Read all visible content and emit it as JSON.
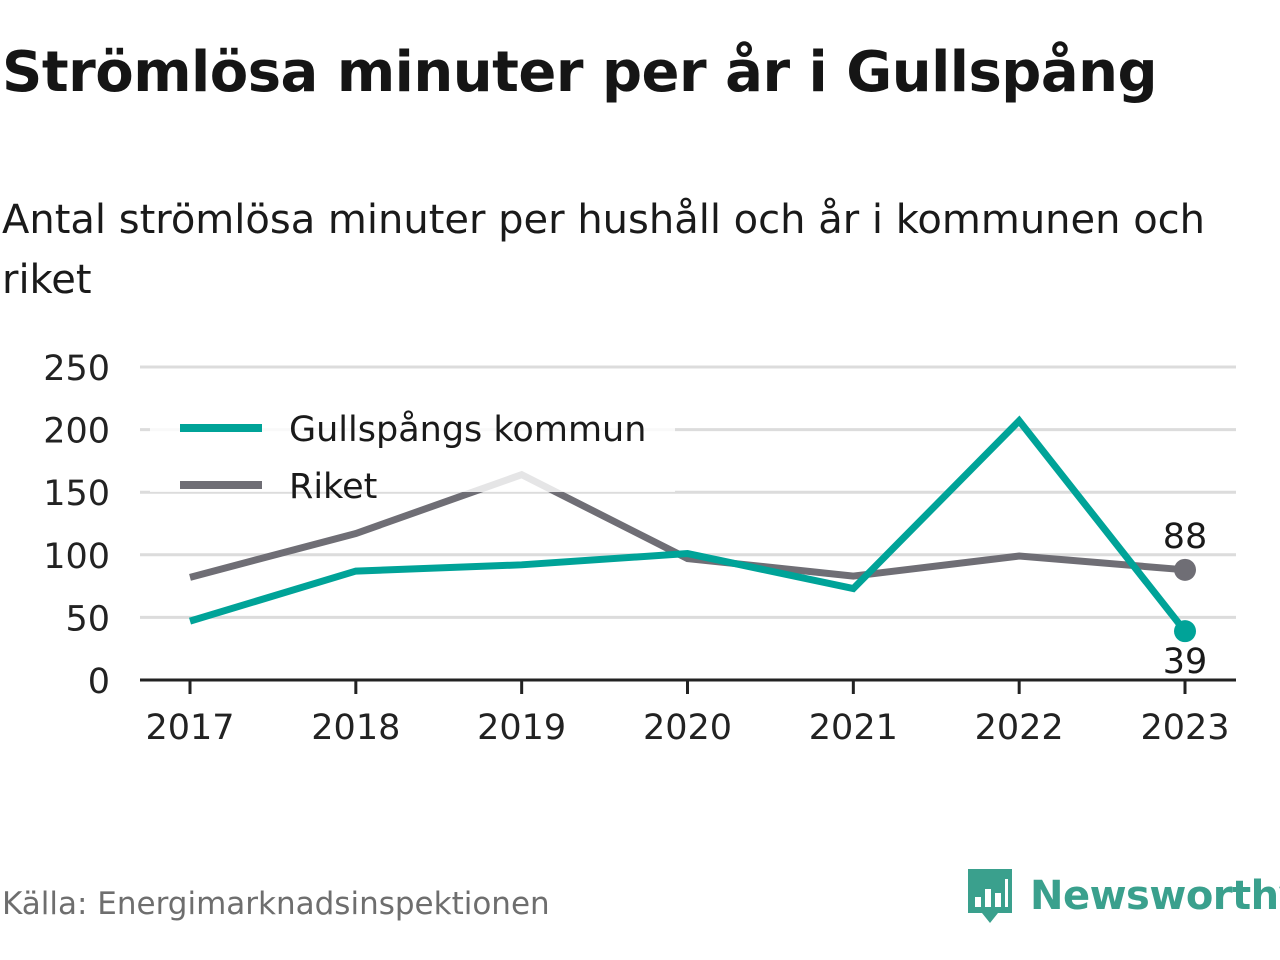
{
  "title": "Strömlösa minuter per år i Gullspång",
  "subtitle": "Antal strömlösa minuter per hushåll och år i kommunen och riket",
  "source": "Källa: Energimarknadsinspektionen",
  "brand": {
    "name": "Newsworthy",
    "icon": "newsworthy-logo-icon"
  },
  "colors": {
    "primary": "#00a398",
    "secondary": "#6f6e75",
    "grid": "#dcdcdc",
    "brand": "#3aa08d"
  },
  "chart_data": {
    "type": "line",
    "x": [
      "2017",
      "2018",
      "2019",
      "2020",
      "2021",
      "2022",
      "2023"
    ],
    "ylim": [
      0,
      250
    ],
    "yticks": [
      0,
      50,
      100,
      150,
      200,
      250
    ],
    "grid": true,
    "legend_position": "top-left",
    "series": [
      {
        "name": "Gullspångs kommun",
        "color": "#00a398",
        "values": [
          47,
          87,
          92,
          101,
          73,
          207,
          39
        ],
        "end_label": "39"
      },
      {
        "name": "Riket",
        "color": "#6f6e75",
        "values": [
          82,
          117,
          164,
          97,
          83,
          99,
          88
        ],
        "end_label": "88"
      }
    ]
  }
}
